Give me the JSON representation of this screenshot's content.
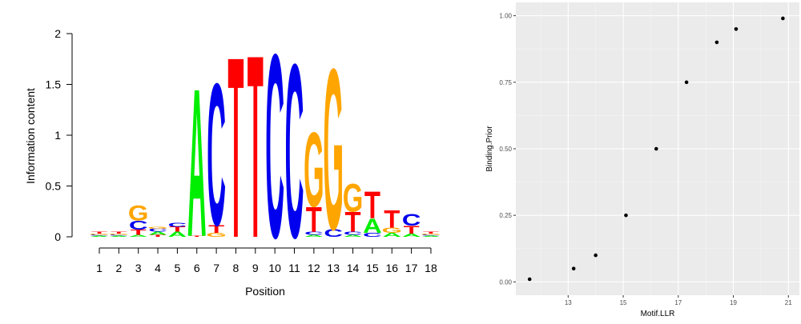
{
  "chart_data": [
    {
      "type": "sequence-logo",
      "xlabel": "Position",
      "ylabel": "Information content",
      "ylim": [
        0,
        2
      ],
      "yticks": [
        "0",
        "0.5",
        "1",
        "1.5",
        "2"
      ],
      "positions": [
        "1",
        "2",
        "3",
        "4",
        "5",
        "6",
        "7",
        "8",
        "9",
        "10",
        "11",
        "12",
        "13",
        "14",
        "15",
        "16",
        "17",
        "18"
      ],
      "colors": {
        "A": "#00ee00",
        "C": "#0000ee",
        "G": "#ffa500",
        "T": "#ff0000"
      },
      "stacks": [
        [
          [
            "A",
            0.01
          ],
          [
            "C",
            0.01
          ],
          [
            "G",
            0.01
          ],
          [
            "T",
            0.02
          ]
        ],
        [
          [
            "A",
            0.01
          ],
          [
            "C",
            0.01
          ],
          [
            "G",
            0.01
          ],
          [
            "T",
            0.02
          ]
        ],
        [
          [
            "A",
            0.02
          ],
          [
            "T",
            0.05
          ],
          [
            "C",
            0.09
          ],
          [
            "G",
            0.15
          ]
        ],
        [
          [
            "T",
            0.02
          ],
          [
            "A",
            0.03
          ],
          [
            "C",
            0.03
          ],
          [
            "G",
            0.02
          ]
        ],
        [
          [
            "A",
            0.05
          ],
          [
            "T",
            0.05
          ],
          [
            "C",
            0.04
          ]
        ],
        [
          [
            "T",
            0.01
          ],
          [
            "A",
            1.49
          ]
        ],
        [
          [
            "G",
            0.04
          ],
          [
            "T",
            0.08
          ],
          [
            "C",
            1.43
          ]
        ],
        [
          [
            "T",
            1.82
          ]
        ],
        [
          [
            "T",
            1.84
          ]
        ],
        [
          [
            "C",
            1.85
          ]
        ],
        [
          [
            "C",
            1.75
          ]
        ],
        [
          [
            "A",
            0.02
          ],
          [
            "C",
            0.03
          ],
          [
            "T",
            0.25
          ],
          [
            "G",
            0.75
          ]
        ],
        [
          [
            "C",
            0.08
          ],
          [
            "G",
            1.62
          ]
        ],
        [
          [
            "A",
            0.02
          ],
          [
            "C",
            0.03
          ],
          [
            "T",
            0.2
          ],
          [
            "G",
            0.28
          ]
        ],
        [
          [
            "C",
            0.04
          ],
          [
            "A",
            0.14
          ],
          [
            "T",
            0.27
          ]
        ],
        [
          [
            "A",
            0.04
          ],
          [
            "G",
            0.05
          ],
          [
            "T",
            0.18
          ]
        ],
        [
          [
            "A",
            0.03
          ],
          [
            "T",
            0.08
          ],
          [
            "C",
            0.12
          ]
        ],
        [
          [
            "A",
            0.01
          ],
          [
            "C",
            0.01
          ],
          [
            "G",
            0.01
          ],
          [
            "T",
            0.02
          ]
        ]
      ]
    },
    {
      "type": "scatter",
      "xlabel": "Motif.LLR",
      "ylabel": "Binding.Prior",
      "xlim": [
        11.1,
        21.4
      ],
      "ylim": [
        -0.05,
        1.05
      ],
      "xticks": [
        13,
        15,
        17,
        19,
        21
      ],
      "xtick_labels": [
        "13",
        "15",
        "17",
        "19",
        "21"
      ],
      "yticks": [
        0,
        0.25,
        0.5,
        0.75,
        1
      ],
      "ytick_labels": [
        "0.00",
        "0.25",
        "0.50",
        "0.75",
        "1.00"
      ],
      "x": [
        11.6,
        13.2,
        14.0,
        15.1,
        16.2,
        17.3,
        18.4,
        19.1,
        20.8
      ],
      "y": [
        0.01,
        0.05,
        0.1,
        0.25,
        0.5,
        0.75,
        0.9,
        0.95,
        0.99
      ]
    }
  ]
}
